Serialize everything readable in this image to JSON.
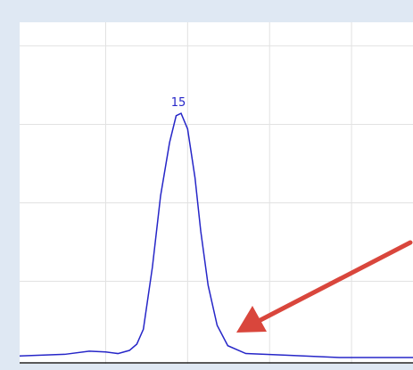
{
  "chart_data": {
    "type": "line",
    "x": [
      -0.05,
      0.5,
      0.8,
      1.0,
      1.15,
      1.29,
      1.38,
      1.46,
      1.57,
      1.67,
      1.78,
      1.86,
      1.92,
      2.0,
      2.09,
      2.16,
      2.25,
      2.36,
      2.49,
      2.71,
      3.2,
      3.85,
      4.75
    ],
    "series": [
      {
        "color": "#2626c8",
        "values": [
          0.05,
          0.07,
          0.11,
          0.1,
          0.08,
          0.12,
          0.2,
          0.39,
          1.18,
          2.09,
          2.77,
          3.11,
          3.14,
          2.94,
          2.32,
          1.64,
          0.95,
          0.44,
          0.18,
          0.08,
          0.06,
          0.03,
          0.03
        ]
      }
    ],
    "xlim": [
      -0.05,
      4.75
    ],
    "ylim": [
      -0.05,
      4.3
    ],
    "x_grid": [
      1,
      2,
      3,
      4
    ],
    "y_grid": [
      1,
      2,
      3,
      4
    ],
    "annotations": [
      {
        "text": "15",
        "color": "#2626c8"
      }
    ]
  }
}
